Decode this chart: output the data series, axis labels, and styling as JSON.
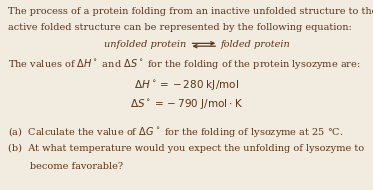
{
  "background_color": "#f2ece0",
  "text_color": "#5c3317",
  "fig_width": 3.73,
  "fig_height": 1.9,
  "dpi": 100,
  "font_size": 7.0,
  "font_family": "serif",
  "line1": "The process of a protein folding from an inactive unfolded structure to the",
  "line2": "active folded structure can be represented by the following equation:",
  "line3_left": "unfolded protein",
  "line3_right": "folded protein",
  "line4": "The values of $\\Delta H^\\circ$ and $\\Delta S^\\circ$ for the folding of the protein lysozyme are:",
  "eq1": "$\\Delta H^\\circ = -280\\ \\mathrm{kJ/mol}$",
  "eq2": "$\\Delta S^\\circ = -790\\ \\mathrm{J/mol \\cdot K}$",
  "qa": "(a)  Calculate the value of $\\Delta G^\\circ$ for the folding of lysozyme at 25 °C.",
  "qb1": "(b)  At what temperature would you expect the unfolding of lysozyme to",
  "qb2": "       become favorable?"
}
